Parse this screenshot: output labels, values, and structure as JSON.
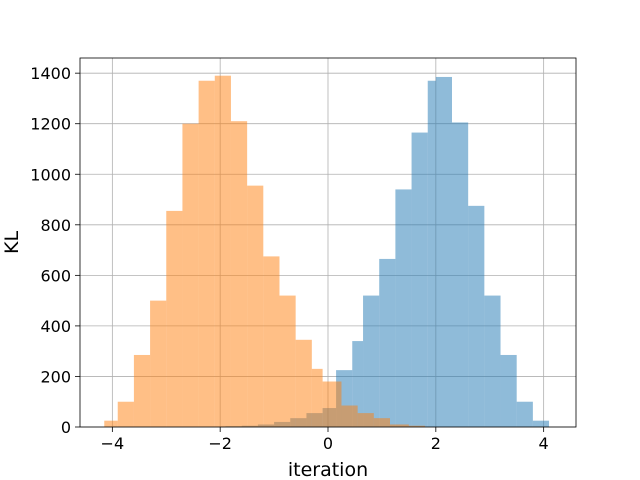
{
  "chart_data": {
    "type": "histogram",
    "title": "",
    "xlabel": "iteration",
    "ylabel": "KL",
    "xlim": [
      -4.6,
      4.6
    ],
    "ylim": [
      0,
      1460
    ],
    "xticks": [
      -4,
      -2,
      0,
      2,
      4
    ],
    "yticks": [
      0,
      200,
      400,
      600,
      800,
      1000,
      1200,
      1400
    ],
    "grid": true,
    "series": [
      {
        "color": "#1f77b4",
        "alpha": 0.5,
        "bins": [
          [
            -1.9,
            -1.6,
            3
          ],
          [
            -1.6,
            -1.3,
            5
          ],
          [
            -1.3,
            -1.0,
            10
          ],
          [
            -1.0,
            -0.7,
            20
          ],
          [
            -0.7,
            -0.4,
            35
          ],
          [
            -0.4,
            -0.1,
            55
          ],
          [
            -0.1,
            0.15,
            75
          ],
          [
            0.15,
            0.45,
            225
          ],
          [
            0.45,
            0.65,
            340
          ],
          [
            0.65,
            0.95,
            520
          ],
          [
            0.95,
            1.25,
            665
          ],
          [
            1.25,
            1.55,
            940
          ],
          [
            1.55,
            1.85,
            1165
          ],
          [
            1.85,
            2.0,
            1370
          ],
          [
            2.0,
            2.3,
            1385
          ],
          [
            2.3,
            2.6,
            1205
          ],
          [
            2.6,
            2.9,
            875
          ],
          [
            2.9,
            3.2,
            520
          ],
          [
            3.2,
            3.5,
            285
          ],
          [
            3.5,
            3.8,
            100
          ],
          [
            3.8,
            4.1,
            25
          ]
        ]
      },
      {
        "color": "#ff7f0e",
        "alpha": 0.5,
        "bins": [
          [
            -4.15,
            -3.9,
            25
          ],
          [
            -3.9,
            -3.6,
            100
          ],
          [
            -3.6,
            -3.3,
            285
          ],
          [
            -3.3,
            -3.0,
            500
          ],
          [
            -3.0,
            -2.7,
            855
          ],
          [
            -2.7,
            -2.4,
            1200
          ],
          [
            -2.4,
            -2.1,
            1370
          ],
          [
            -2.1,
            -1.8,
            1390
          ],
          [
            -1.8,
            -1.5,
            1210
          ],
          [
            -1.5,
            -1.2,
            955
          ],
          [
            -1.2,
            -0.9,
            675
          ],
          [
            -0.9,
            -0.6,
            520
          ],
          [
            -0.6,
            -0.3,
            345
          ],
          [
            -0.3,
            -0.1,
            230
          ],
          [
            -0.1,
            0.25,
            180
          ],
          [
            0.25,
            0.55,
            85
          ],
          [
            0.55,
            0.85,
            55
          ],
          [
            0.85,
            1.15,
            35
          ],
          [
            1.15,
            1.5,
            10
          ],
          [
            1.5,
            1.8,
            5
          ]
        ]
      }
    ]
  }
}
